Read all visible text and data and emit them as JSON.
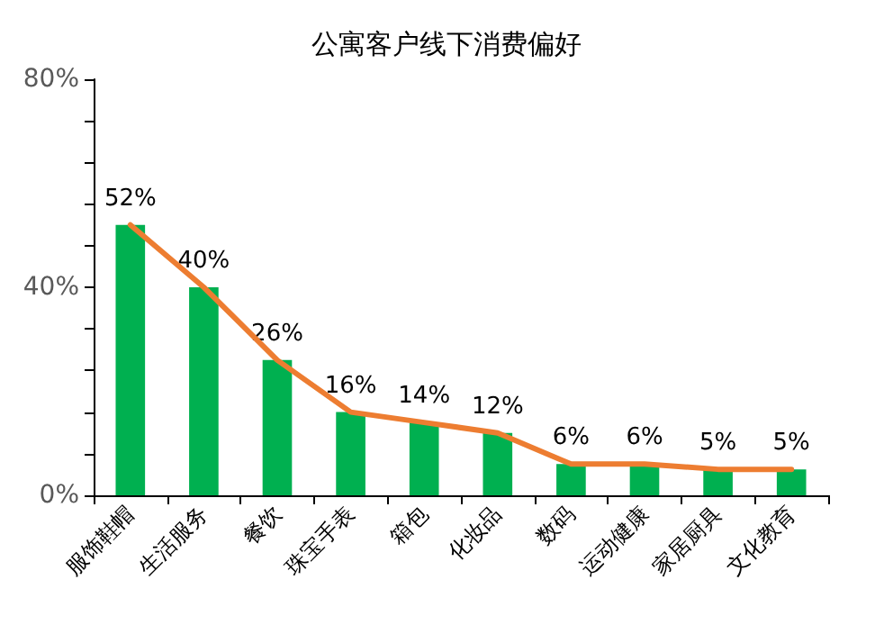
{
  "chart_data": {
    "type": "bar",
    "title": "公寓客户线下消费偏好",
    "categories": [
      "服饰鞋帽",
      "生活服务",
      "餐饮",
      "珠宝手表",
      "箱包",
      "化妆品",
      "数码",
      "运动健康",
      "家居厨具",
      "文化教育"
    ],
    "series": [
      {
        "color": "#00b050",
        "values": [
          52,
          40,
          26,
          16,
          14,
          12,
          6,
          6,
          5,
          5
        ],
        "value_labels": [
          "52%",
          "40%",
          "26%",
          "16%",
          "14%",
          "12%",
          "6%",
          "6%",
          "5%",
          "5%"
        ]
      },
      {
        "type": "line",
        "color": "#ed7d31",
        "values": [
          52,
          40,
          26,
          16,
          14,
          12,
          6,
          6,
          5,
          5
        ],
        "marker": "none",
        "line_style": "solid"
      }
    ],
    "ylim": [
      0,
      80
    ],
    "yticks": [
      {
        "value": 0,
        "label": "0%"
      },
      {
        "value": 8,
        "label": null
      },
      {
        "value": 16,
        "label": null
      },
      {
        "value": 24,
        "label": null
      },
      {
        "value": 32,
        "label": null
      },
      {
        "value": 40,
        "label": "40%"
      },
      {
        "value": 48,
        "label": null
      },
      {
        "value": 56,
        "label": null
      },
      {
        "value": 64,
        "label": null
      },
      {
        "value": 72,
        "label": null
      },
      {
        "value": 80,
        "label": "80%"
      }
    ],
    "grid": false
  }
}
